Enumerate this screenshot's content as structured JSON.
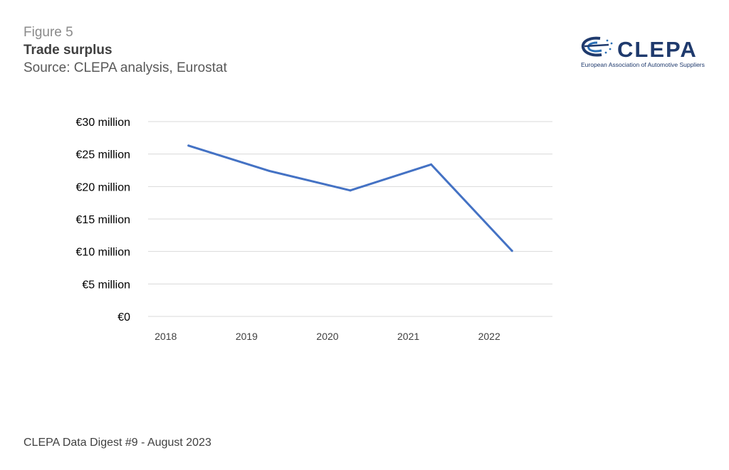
{
  "figure": {
    "label": "Figure 5",
    "title": "Trade surplus",
    "source": "Source: CLEPA analysis, Eurostat"
  },
  "logo": {
    "wordmark": "CLEPA",
    "tagline": "European Association of Automotive Suppliers"
  },
  "footer": {
    "text": "CLEPA Data Digest #9 - August 2023"
  },
  "chart_data": {
    "type": "line",
    "title": "Trade surplus",
    "categories": [
      "2018",
      "2019",
      "2020",
      "2021",
      "2022"
    ],
    "series": [
      {
        "values": [
          26.3,
          22.4,
          19.4,
          23.4,
          10.1
        ],
        "color": "#4472c4"
      }
    ],
    "y_ticks": [
      0,
      5,
      10,
      15,
      20,
      25,
      30
    ],
    "y_tick_labels": [
      "€0",
      "€5 million",
      "€10 million",
      "€15 million",
      "€20 million",
      "€25 million",
      "€30 million"
    ],
    "ylim": [
      0,
      30
    ],
    "grid": true,
    "legend": "none",
    "colors": {
      "gridline": "#d9d9d9",
      "line": "#4472c4"
    }
  }
}
